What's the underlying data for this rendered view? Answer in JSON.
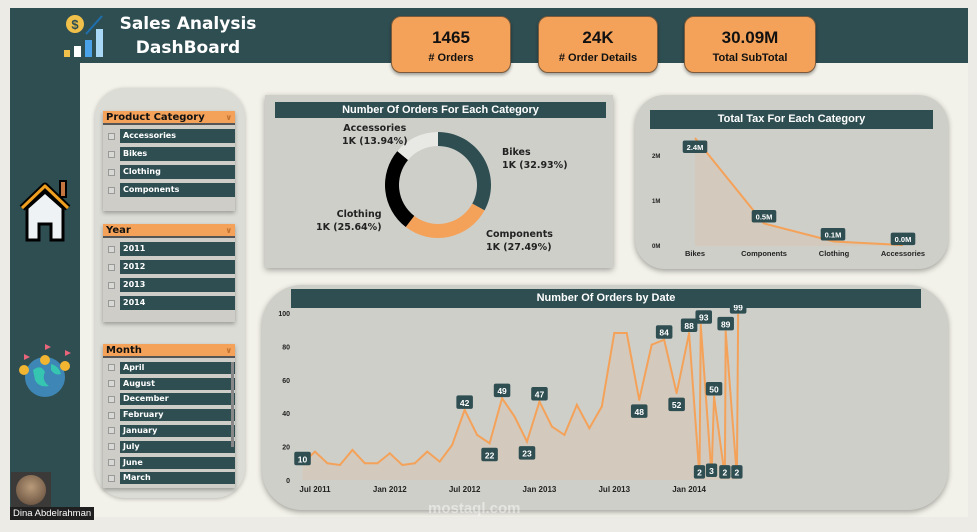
{
  "header": {
    "title_line1": "Sales Analysis",
    "title_line2": "DashBoard",
    "logo": "sales-chart-dollar-icon"
  },
  "kpis": [
    {
      "value": "1465",
      "label": "# Orders"
    },
    {
      "value": "24K",
      "label": "# Order Details"
    },
    {
      "value": "30.09M",
      "label": "Total SubTotal"
    }
  ],
  "sidebar": {
    "icons": [
      "home-icon",
      "globe-pins-icon"
    ],
    "user": "Dina Abdelrahman"
  },
  "slicers": {
    "category": {
      "title": "Product Category",
      "items": [
        "Accessories",
        "Bikes",
        "Clothing",
        "Components"
      ]
    },
    "year": {
      "title": "Year",
      "items": [
        "2011",
        "2012",
        "2013",
        "2014"
      ]
    },
    "month": {
      "title": "Month",
      "items": [
        "April",
        "August",
        "December",
        "February",
        "January",
        "July",
        "June",
        "March"
      ]
    }
  },
  "watermark": "mostaql.com",
  "colors": {
    "teal": "#2f4e52",
    "orange": "#f4a259",
    "black": "#000000",
    "light": "#e8e8e4"
  },
  "chart_data": [
    {
      "type": "pie",
      "title": "Number Of Orders For Each Category",
      "slices": [
        {
          "name": "Bikes",
          "label": "1K (32.93%)",
          "percent": 32.93,
          "color": "#2f4e52"
        },
        {
          "name": "Components",
          "label": "1K (27.49%)",
          "percent": 27.49,
          "color": "#f4a259"
        },
        {
          "name": "Clothing",
          "label": "1K (25.64%)",
          "percent": 25.64,
          "color": "#000000"
        },
        {
          "name": "Accessories",
          "label": "1K (13.94%)",
          "percent": 13.94,
          "color": "#e8e8e4"
        }
      ]
    },
    {
      "type": "area",
      "title": "Total Tax For Each Category",
      "categories": [
        "Bikes",
        "Components",
        "Clothing",
        "Accessories"
      ],
      "values": [
        2.4,
        0.5,
        0.1,
        0.02
      ],
      "data_labels": [
        "2.4M",
        "0.5M",
        "0.1M",
        "0.0M"
      ],
      "yticks": [
        "0M",
        "1M",
        "2M"
      ],
      "ylim": [
        0,
        2.4
      ]
    },
    {
      "type": "line",
      "title": "Number Of Orders by Date",
      "ylim": [
        0,
        100
      ],
      "yticks": [
        "0",
        "20",
        "40",
        "60",
        "80",
        "100"
      ],
      "xticks": [
        "Jul 2011",
        "Jan 2012",
        "Jul 2012",
        "Jan 2013",
        "Jul 2013",
        "Jan 2014"
      ],
      "points": [
        [
          "2011-06-01",
          10,
          "10"
        ],
        [
          "2011-07-01",
          17
        ],
        [
          "2011-08-01",
          10
        ],
        [
          "2011-09-01",
          9
        ],
        [
          "2011-10-01",
          18
        ],
        [
          "2011-11-01",
          10
        ],
        [
          "2011-12-01",
          10
        ],
        [
          "2012-01-01",
          16
        ],
        [
          "2012-02-01",
          9
        ],
        [
          "2012-03-01",
          10
        ],
        [
          "2012-04-01",
          17
        ],
        [
          "2012-05-01",
          11
        ],
        [
          "2012-06-01",
          21
        ],
        [
          "2012-07-01",
          42,
          "42"
        ],
        [
          "2012-08-01",
          27
        ],
        [
          "2012-09-01",
          22,
          "22"
        ],
        [
          "2012-10-01",
          49,
          "49"
        ],
        [
          "2012-11-01",
          38
        ],
        [
          "2012-12-01",
          23,
          "23"
        ],
        [
          "2013-01-01",
          47,
          "47"
        ],
        [
          "2013-02-01",
          32
        ],
        [
          "2013-03-01",
          27
        ],
        [
          "2013-04-01",
          45
        ],
        [
          "2013-05-01",
          31
        ],
        [
          "2013-06-01",
          44
        ],
        [
          "2013-07-01",
          88
        ],
        [
          "2013-08-01",
          88
        ],
        [
          "2013-09-01",
          48,
          "48"
        ],
        [
          "2013-10-01",
          81
        ],
        [
          "2013-11-01",
          84,
          "84"
        ],
        [
          "2013-12-01",
          52,
          "52"
        ],
        [
          "2014-01-01",
          88,
          "88"
        ],
        [
          "2014-01-26",
          2,
          "2"
        ],
        [
          "2014-01-29",
          93,
          "93"
        ],
        [
          "2014-02-25",
          3,
          "3"
        ],
        [
          "2014-03-01",
          50,
          "50"
        ],
        [
          "2014-03-27",
          2,
          "2"
        ],
        [
          "2014-03-29",
          89,
          "89"
        ],
        [
          "2014-04-26",
          2,
          "2"
        ],
        [
          "2014-04-29",
          99,
          "99"
        ]
      ]
    }
  ]
}
